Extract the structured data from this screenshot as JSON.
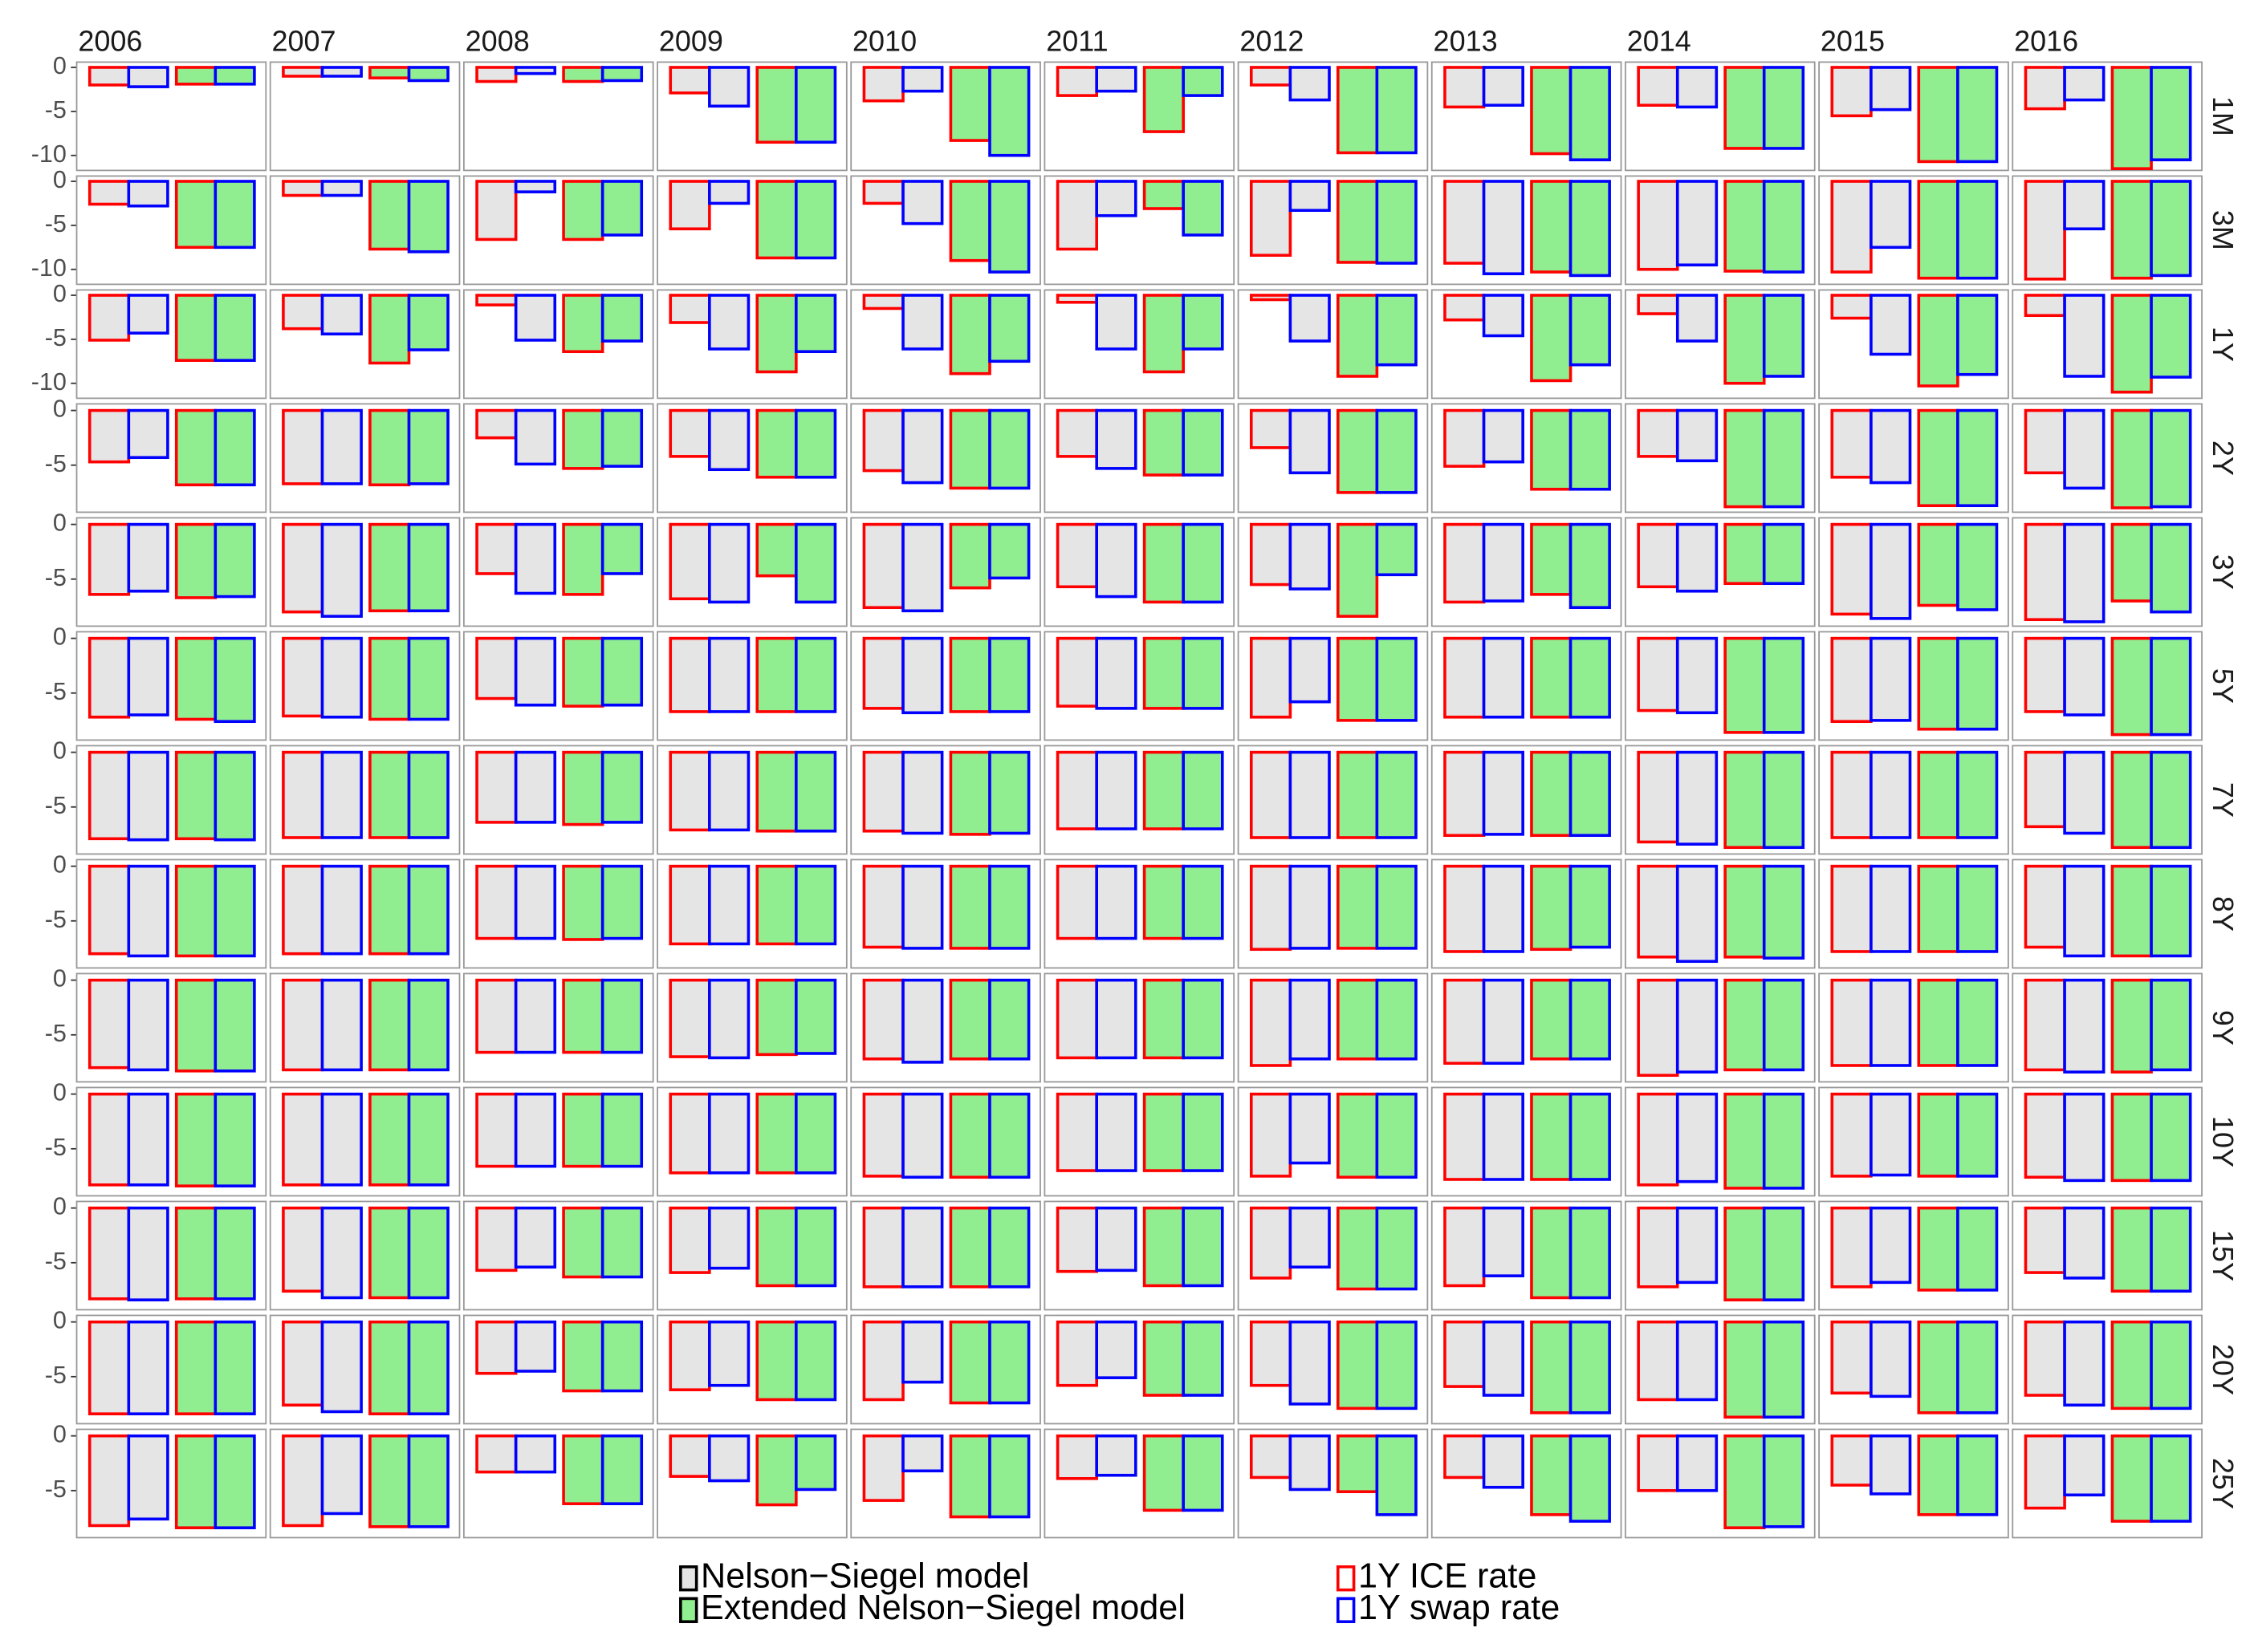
{
  "chart_data": {
    "type": "bar",
    "column_labels": [
      "2006",
      "2007",
      "2008",
      "2009",
      "2010",
      "2011",
      "2012",
      "2013",
      "2014",
      "2015",
      "2016"
    ],
    "fills": [
      {
        "name": "Nelson−Siegel model",
        "color": "#e5e5e5"
      },
      {
        "name": "Extended Nelson−Siegel model",
        "color": "#90ee90"
      }
    ],
    "outlines": [
      {
        "name": "1Y ICE rate",
        "color": "#ff0000"
      },
      {
        "name": "1Y swap rate",
        "color": "#0000ff"
      }
    ],
    "rows": [
      {
        "label": "1M",
        "ylim": [
          -11.7,
          0.6
        ],
        "yticks": [
          -10,
          -5,
          0
        ],
        "panels": [
          [
            -2,
            -2.2,
            -1.9,
            -1.9
          ],
          [
            -1,
            -1,
            -1.2,
            -1.5
          ],
          [
            -1.6,
            -0.7,
            -1.6,
            -1.5
          ],
          [
            -2.9,
            -4.4,
            -8.5,
            -8.5
          ],
          [
            -3.8,
            -2.7,
            -8.3,
            -10
          ],
          [
            -3.2,
            -2.7,
            -7.3,
            -3.2
          ],
          [
            -2,
            -3.7,
            -9.7,
            -9.7
          ],
          [
            -4.5,
            -4.3,
            -9.8,
            -10.5
          ],
          [
            -4.3,
            -4.5,
            -9.2,
            -9.2
          ],
          [
            -5.5,
            -4.8,
            -10.7,
            -10.7
          ],
          [
            -4.7,
            -3.7,
            -11.5,
            -10.5
          ]
        ]
      },
      {
        "label": "3M",
        "ylim": [
          -11.7,
          0.6
        ],
        "yticks": [
          -10,
          -5,
          0
        ],
        "panels": [
          [
            -2.6,
            -2.8,
            -7.5,
            -7.5
          ],
          [
            -1.6,
            -1.6,
            -7.7,
            -8
          ],
          [
            -6.6,
            -1.2,
            -6.6,
            -6.1
          ],
          [
            -5.4,
            -2.5,
            -8.7,
            -8.7
          ],
          [
            -2.5,
            -4.8,
            -9,
            -10.3
          ],
          [
            -7.7,
            -3.9,
            -3.1,
            -6.1
          ],
          [
            -8.4,
            -3.3,
            -9.2,
            -9.3
          ],
          [
            -9.3,
            -10.5,
            -10.3,
            -10.7
          ],
          [
            -10,
            -9.5,
            -10.2,
            -10.3
          ],
          [
            -10.3,
            -7.5,
            -11,
            -11
          ],
          [
            -11.1,
            -5.4,
            -11,
            -10.7
          ]
        ]
      },
      {
        "label": "1Y",
        "ylim": [
          -11.7,
          0.6
        ],
        "yticks": [
          -10,
          -5,
          0
        ],
        "panels": [
          [
            -5.1,
            -4.3,
            -7.4,
            -7.4
          ],
          [
            -3.8,
            -4.4,
            -7.7,
            -6.2
          ],
          [
            -1.1,
            -5.1,
            -6.4,
            -5.2
          ],
          [
            -3.1,
            -6.1,
            -8.7,
            -6.4
          ],
          [
            -1.5,
            -6.1,
            -8.9,
            -7.5
          ],
          [
            -0.8,
            -6.1,
            -8.7,
            -6.1
          ],
          [
            -0.5,
            -5.2,
            -9.2,
            -7.9
          ],
          [
            -2.8,
            -4.6,
            -9.7,
            -7.9
          ],
          [
            -2.1,
            -5.2,
            -10,
            -9.2
          ],
          [
            -2.6,
            -6.7,
            -10.3,
            -9
          ],
          [
            -2.3,
            -9.2,
            -11,
            -9.3
          ]
        ]
      },
      {
        "label": "2Y",
        "ylim": [
          -9.3,
          0.6
        ],
        "yticks": [
          -5,
          0
        ],
        "panels": [
          [
            -4.7,
            -4.3,
            -6.8,
            -6.8
          ],
          [
            -6.7,
            -6.7,
            -6.8,
            -6.7
          ],
          [
            -2.5,
            -4.9,
            -5.3,
            -5.1
          ],
          [
            -4.2,
            -5.4,
            -6.1,
            -6.1
          ],
          [
            -5.5,
            -6.6,
            -7.1,
            -7.1
          ],
          [
            -4.2,
            -5.3,
            -5.9,
            -5.9
          ],
          [
            -3.4,
            -5.7,
            -7.5,
            -7.5
          ],
          [
            -5.1,
            -4.7,
            -7.2,
            -7.2
          ],
          [
            -4.2,
            -4.6,
            -8.8,
            -8.8
          ],
          [
            -6.1,
            -6.6,
            -8.7,
            -8.7
          ],
          [
            -5.7,
            -7.1,
            -8.9,
            -8.8
          ]
        ]
      },
      {
        "label": "3Y",
        "ylim": [
          -9.3,
          0.6
        ],
        "yticks": [
          -5,
          0
        ],
        "panels": [
          [
            -6.4,
            -6.1,
            -6.7,
            -6.6
          ],
          [
            -8,
            -8.4,
            -7.9,
            -7.9
          ],
          [
            -4.5,
            -6.3,
            -6.4,
            -4.5
          ],
          [
            -6.8,
            -7.1,
            -4.7,
            -7.1
          ],
          [
            -7.6,
            -7.9,
            -5.8,
            -4.9
          ],
          [
            -5.7,
            -6.6,
            -7.1,
            -7.1
          ],
          [
            -5.5,
            -5.9,
            -8.4,
            -4.6
          ],
          [
            -7.1,
            -7,
            -6.4,
            -7.6
          ],
          [
            -5.7,
            -6.1,
            -5.4,
            -5.4
          ],
          [
            -8.2,
            -8.6,
            -7.4,
            -7.8
          ],
          [
            -8.7,
            -8.9,
            -7,
            -8
          ]
        ]
      },
      {
        "label": "5Y",
        "ylim": [
          -9.3,
          0.6
        ],
        "yticks": [
          -5,
          0
        ],
        "panels": [
          [
            -7.2,
            -7,
            -7.4,
            -7.6
          ],
          [
            -7.1,
            -7.2,
            -7.4,
            -7.4
          ],
          [
            -5.5,
            -6.1,
            -6.2,
            -6.1
          ],
          [
            -6.7,
            -6.7,
            -6.7,
            -6.7
          ],
          [
            -6.4,
            -6.8,
            -6.7,
            -6.7
          ],
          [
            -6.2,
            -6.4,
            -6.4,
            -6.4
          ],
          [
            -7.2,
            -5.8,
            -7.5,
            -7.5
          ],
          [
            -7.2,
            -7.2,
            -7.2,
            -7.2
          ],
          [
            -6.6,
            -6.8,
            -8.6,
            -8.6
          ],
          [
            -7.6,
            -7.5,
            -8.3,
            -8.3
          ],
          [
            -6.7,
            -7,
            -8.8,
            -8.8
          ]
        ]
      },
      {
        "label": "7Y",
        "ylim": [
          -9.3,
          0.6
        ],
        "yticks": [
          -5,
          0
        ],
        "panels": [
          [
            -7.9,
            -8,
            -7.9,
            -8
          ],
          [
            -7.8,
            -7.8,
            -7.8,
            -7.8
          ],
          [
            -6.4,
            -6.4,
            -6.6,
            -6.4
          ],
          [
            -7.1,
            -7.1,
            -7.2,
            -7.2
          ],
          [
            -7.2,
            -7.4,
            -7.5,
            -7.4
          ],
          [
            -7,
            -7,
            -7,
            -7
          ],
          [
            -7.8,
            -7.8,
            -7.8,
            -7.8
          ],
          [
            -7.6,
            -7.5,
            -7.6,
            -7.6
          ],
          [
            -8.2,
            -8.4,
            -8.7,
            -8.7
          ],
          [
            -7.8,
            -7.8,
            -7.8,
            -7.8
          ],
          [
            -6.8,
            -7.4,
            -8.7,
            -8.7
          ]
        ]
      },
      {
        "label": "8Y",
        "ylim": [
          -9.3,
          0.6
        ],
        "yticks": [
          -5,
          0
        ],
        "panels": [
          [
            -8,
            -8.2,
            -8.2,
            -8.2
          ],
          [
            -8,
            -8,
            -8,
            -8
          ],
          [
            -6.6,
            -6.6,
            -6.7,
            -6.6
          ],
          [
            -7.1,
            -7.1,
            -7.1,
            -7.1
          ],
          [
            -7.4,
            -7.5,
            -7.5,
            -7.5
          ],
          [
            -6.6,
            -6.6,
            -6.6,
            -6.6
          ],
          [
            -7.6,
            -7.5,
            -7.5,
            -7.5
          ],
          [
            -7.8,
            -7.8,
            -7.6,
            -7.4
          ],
          [
            -8.3,
            -8.7,
            -8.3,
            -8.4
          ],
          [
            -7.8,
            -7.8,
            -7.8,
            -7.8
          ],
          [
            -7.4,
            -8.2,
            -8.2,
            -8.2
          ]
        ]
      },
      {
        "label": "9Y",
        "ylim": [
          -9.3,
          0.6
        ],
        "yticks": [
          -5,
          0
        ],
        "panels": [
          [
            -8,
            -8.2,
            -8.3,
            -8.3
          ],
          [
            -8.2,
            -8.2,
            -8.2,
            -8.2
          ],
          [
            -6.6,
            -6.6,
            -6.6,
            -6.6
          ],
          [
            -7,
            -7.1,
            -6.8,
            -6.7
          ],
          [
            -7.2,
            -7.5,
            -7.2,
            -7.2
          ],
          [
            -7.1,
            -7.1,
            -7.1,
            -7.1
          ],
          [
            -7.8,
            -7.2,
            -7.2,
            -7.2
          ],
          [
            -7.6,
            -7.6,
            -7.2,
            -7.2
          ],
          [
            -8.7,
            -8.4,
            -8.2,
            -8.2
          ],
          [
            -7.8,
            -7.8,
            -7.8,
            -7.8
          ],
          [
            -8.2,
            -8.4,
            -8.4,
            -8.2
          ]
        ]
      },
      {
        "label": "10Y",
        "ylim": [
          -9.3,
          0.6
        ],
        "yticks": [
          -5,
          0
        ],
        "panels": [
          [
            -8.3,
            -8.3,
            -8.4,
            -8.4
          ],
          [
            -8.3,
            -8.3,
            -8.3,
            -8.3
          ],
          [
            -6.6,
            -6.6,
            -6.6,
            -6.6
          ],
          [
            -7.2,
            -7.2,
            -7.2,
            -7.2
          ],
          [
            -7.5,
            -7.6,
            -7.6,
            -7.6
          ],
          [
            -7,
            -7,
            -7,
            -7
          ],
          [
            -7.5,
            -6.3,
            -7.6,
            -7.6
          ],
          [
            -7.8,
            -7.8,
            -7.8,
            -7.8
          ],
          [
            -8.3,
            -8,
            -8.6,
            -8.6
          ],
          [
            -7.5,
            -7.4,
            -7.5,
            -7.5
          ],
          [
            -7.6,
            -7.9,
            -7.9,
            -7.9
          ]
        ]
      },
      {
        "label": "15Y",
        "ylim": [
          -9.3,
          0.6
        ],
        "yticks": [
          -5,
          0
        ],
        "panels": [
          [
            -8.3,
            -8.4,
            -8.3,
            -8.3
          ],
          [
            -7.6,
            -8.2,
            -8.2,
            -8.2
          ],
          [
            -5.7,
            -5.4,
            -6.3,
            -6.3
          ],
          [
            -5.9,
            -5.5,
            -7.1,
            -7.1
          ],
          [
            -7.2,
            -7.2,
            -7.2,
            -7.2
          ],
          [
            -5.8,
            -5.7,
            -7.1,
            -7.1
          ],
          [
            -6.4,
            -5.4,
            -7.4,
            -7.4
          ],
          [
            -7.1,
            -6.2,
            -8.2,
            -8.2
          ],
          [
            -7.2,
            -6.8,
            -8.4,
            -8.4
          ],
          [
            -7.2,
            -6.8,
            -7.5,
            -7.5
          ],
          [
            -5.9,
            -6.4,
            -7.6,
            -7.6
          ]
        ]
      },
      {
        "label": "20Y",
        "ylim": [
          -9.3,
          0.6
        ],
        "yticks": [
          -5,
          0
        ],
        "panels": [
          [
            -8.4,
            -8.4,
            -8.4,
            -8.4
          ],
          [
            -7.6,
            -8.2,
            -8.4,
            -8.4
          ],
          [
            -4.7,
            -4.5,
            -6.3,
            -6.3
          ],
          [
            -6.2,
            -5.8,
            -7.1,
            -7.1
          ],
          [
            -7.1,
            -5.5,
            -7.4,
            -7.4
          ],
          [
            -5.8,
            -5.1,
            -6.7,
            -6.7
          ],
          [
            -5.8,
            -7.5,
            -7.9,
            -7.9
          ],
          [
            -5.9,
            -6.7,
            -8.3,
            -8.3
          ],
          [
            -7.1,
            -7.1,
            -8.7,
            -8.7
          ],
          [
            -6.5,
            -6.8,
            -8.3,
            -8.3
          ],
          [
            -6.7,
            -7.6,
            -7.9,
            -7.9
          ]
        ]
      },
      {
        "label": "25Y",
        "ylim": [
          -9.3,
          0.6
        ],
        "yticks": [
          -5,
          0
        ],
        "panels": [
          [
            -8.2,
            -7.6,
            -8.4,
            -8.4
          ],
          [
            -8.2,
            -7.1,
            -8.3,
            -8.3
          ],
          [
            -3.3,
            -3.3,
            -6.2,
            -6.2
          ],
          [
            -3.7,
            -4.1,
            -6.3,
            -4.9
          ],
          [
            -5.9,
            -3.2,
            -7.4,
            -7.4
          ],
          [
            -3.9,
            -3.6,
            -6.8,
            -6.8
          ],
          [
            -3.8,
            -4.9,
            -5.1,
            -7.2
          ],
          [
            -3.8,
            -4.7,
            -7.2,
            -7.8
          ],
          [
            -5,
            -5,
            -8.4,
            -8.3
          ],
          [
            -4.5,
            -5.3,
            -7.2,
            -7.2
          ],
          [
            -6.6,
            -5.4,
            -7.8,
            -7.8
          ]
        ]
      }
    ]
  }
}
